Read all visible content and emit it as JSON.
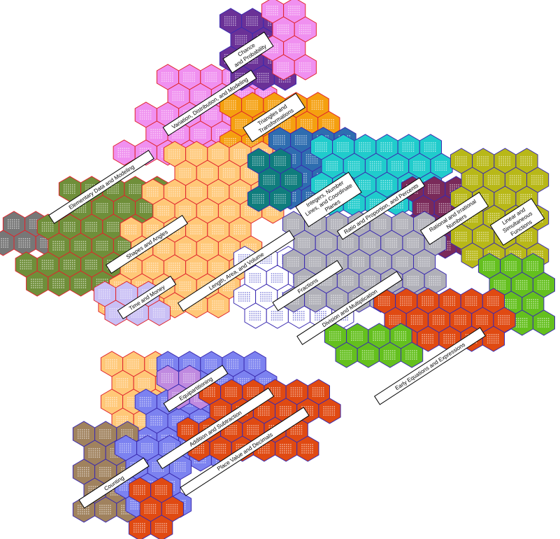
{
  "diagram": {
    "regions": [
      {
        "id": "counting",
        "label": [
          "Counting"
        ],
        "color": "#a0825e"
      },
      {
        "id": "place-value",
        "label": [
          "Place Value and Decimals"
        ],
        "color": "#e04a12"
      },
      {
        "id": "addition",
        "label": [
          "Addition and Subtraction"
        ],
        "color": "#7c82f0"
      },
      {
        "id": "equipartitioning",
        "label": [
          "Equipartitioning"
        ],
        "color": "#c08ae0"
      },
      {
        "id": "length",
        "label": [
          "Length, Area, and Volume"
        ],
        "color": "#ffc878"
      },
      {
        "id": "time-money",
        "label": [
          "Time and Money"
        ],
        "color": "#c9bff5"
      },
      {
        "id": "shapes",
        "label": [
          "Shapes and Angles"
        ],
        "color": "#6f8f3a"
      },
      {
        "id": "elementary-data",
        "label": [
          "Elementary Data and Modeling"
        ],
        "color": "#777777"
      },
      {
        "id": "variation",
        "label": [
          "Variation, Distribution, and Modeling"
        ],
        "color": "#f090f0"
      },
      {
        "id": "chance",
        "label": [
          "Chance",
          "and Probability"
        ],
        "color": "#6a3197"
      },
      {
        "id": "triangles",
        "label": [
          "Triangles and",
          "Transformations"
        ],
        "color": "#f5a010"
      },
      {
        "id": "integers",
        "label": [
          "Integers, Number",
          "Lines, and Coordinate",
          "Planes"
        ],
        "color": "#2e6db0"
      },
      {
        "id": "ratio",
        "label": [
          "Ratio and Proportion, and Percents"
        ],
        "color": "#20cccc"
      },
      {
        "id": "rational",
        "label": [
          "Rational and Irrational",
          "Numbers"
        ],
        "color": "#7a2a5a"
      },
      {
        "id": "linear",
        "label": [
          "Linear and",
          "Simultaneous",
          "Functions"
        ],
        "color": "#b8b818"
      },
      {
        "id": "fractions",
        "label": [
          "Fractions"
        ],
        "color": "#ffffff"
      },
      {
        "id": "division",
        "label": [
          "Division and Multiplication"
        ],
        "color": "#b0b0b8"
      },
      {
        "id": "early-equations",
        "label": [
          "Early Equations and Expressions"
        ],
        "color": "#64c01e"
      }
    ],
    "extra_colors": {
      "teal": "#0f7d7d",
      "olive": "#3f8a5a",
      "yellow": "#f5a844"
    },
    "stroke_red": "#e0242c",
    "stroke_blue": "#3a2ab0"
  }
}
